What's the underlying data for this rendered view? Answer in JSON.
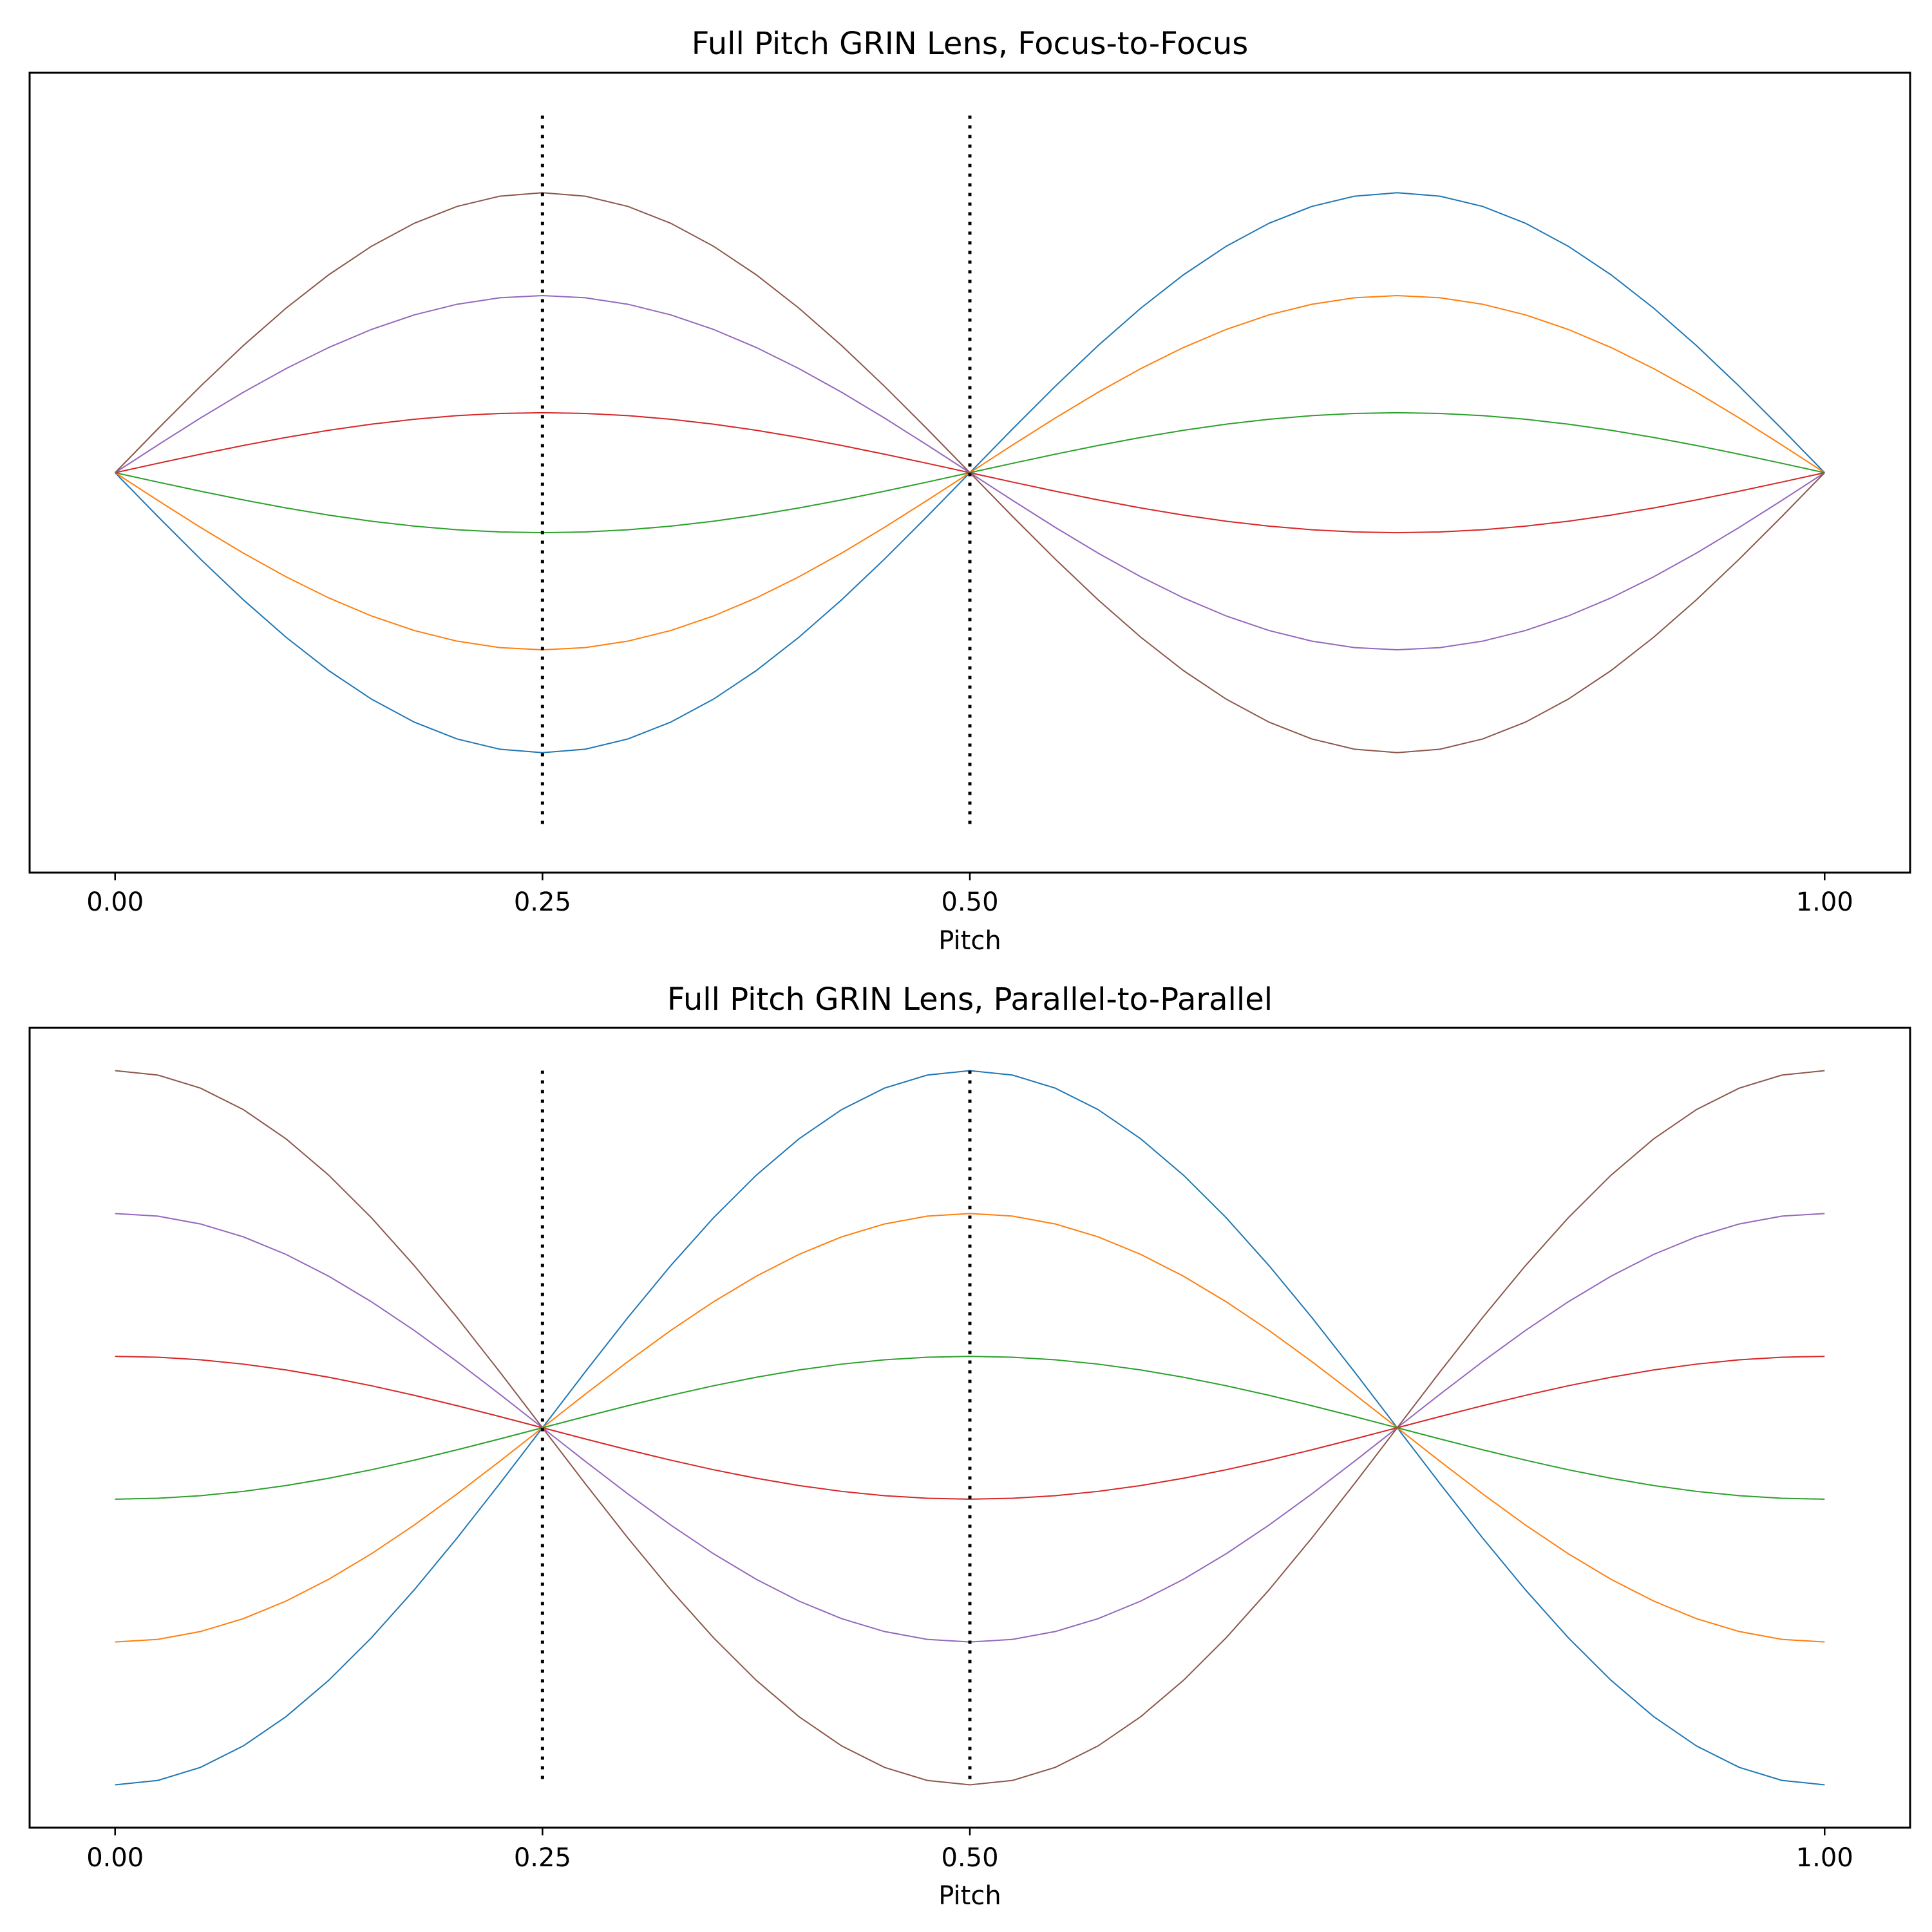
{
  "chart_data": [
    {
      "type": "line",
      "title": "Full Pitch GRIN Lens, Focus-to-Focus",
      "xlabel": "Pitch",
      "ylabel": "",
      "xlim": [
        -0.05,
        1.05
      ],
      "ylim": [
        -1.4,
        1.4
      ],
      "x_ticks": [
        0.0,
        0.25,
        0.5,
        1.0
      ],
      "x_tick_labels": [
        "0.00",
        "0.25",
        "0.50",
        "1.00"
      ],
      "y_ticks_shown": false,
      "grid": false,
      "vertical_markers": [
        {
          "x": 0.25,
          "y_range": [
            -1.25,
            1.25
          ],
          "style": "dotted"
        },
        {
          "x": 0.5,
          "y_range": [
            -1.25,
            1.25
          ],
          "style": "dotted"
        }
      ],
      "curve_model": "y = a * sin(2*pi*x)",
      "series": [
        {
          "color": "#1f77b4",
          "amplitude": -0.98
        },
        {
          "color": "#ff7f0e",
          "amplitude": -0.62
        },
        {
          "color": "#2ca02c",
          "amplitude": -0.21
        },
        {
          "color": "#d62728",
          "amplitude": 0.21
        },
        {
          "color": "#9467bd",
          "amplitude": 0.62
        },
        {
          "color": "#8c564b",
          "amplitude": 0.98
        }
      ],
      "sample_count": 41
    },
    {
      "type": "line",
      "title": "Full Pitch GRIN Lens, Parallel-to-Parallel",
      "xlabel": "Pitch",
      "ylabel": "",
      "xlim": [
        -0.05,
        1.05
      ],
      "ylim": [
        -1.4,
        1.4
      ],
      "x_ticks": [
        0.0,
        0.25,
        0.5,
        1.0
      ],
      "x_tick_labels": [
        "0.00",
        "0.25",
        "0.50",
        "1.00"
      ],
      "y_ticks_shown": false,
      "grid": false,
      "vertical_markers": [
        {
          "x": 0.25,
          "y_range": [
            -1.25,
            1.25
          ],
          "style": "dotted"
        },
        {
          "x": 0.5,
          "y_range": [
            -1.25,
            1.25
          ],
          "style": "dotted"
        }
      ],
      "curve_model": "y = a * cos(2*pi*x)",
      "series": [
        {
          "color": "#1f77b4",
          "amplitude": -1.25
        },
        {
          "color": "#ff7f0e",
          "amplitude": -0.75
        },
        {
          "color": "#2ca02c",
          "amplitude": -0.25
        },
        {
          "color": "#d62728",
          "amplitude": 0.25
        },
        {
          "color": "#9467bd",
          "amplitude": 0.75
        },
        {
          "color": "#8c564b",
          "amplitude": 1.25
        }
      ],
      "sample_count": 41
    }
  ]
}
